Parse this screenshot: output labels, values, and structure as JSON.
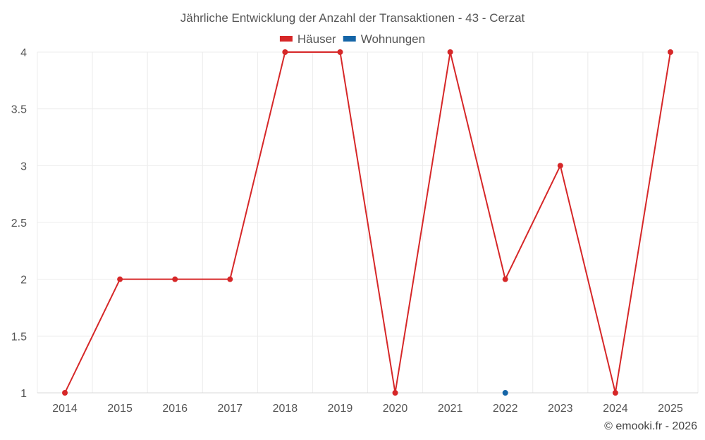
{
  "chart_data": {
    "type": "line",
    "title": "Jährliche Entwicklung der Anzahl der Transaktionen - 43 - Cerzat",
    "x": [
      "2014",
      "2015",
      "2016",
      "2017",
      "2018",
      "2019",
      "2020",
      "2021",
      "2022",
      "2023",
      "2024",
      "2025"
    ],
    "series": [
      {
        "name": "Häuser",
        "color": "#d62728",
        "values": [
          1,
          2,
          2,
          2,
          4,
          4,
          1,
          4,
          2,
          3,
          1,
          4
        ]
      },
      {
        "name": "Wohnungen",
        "color": "#1565a7",
        "values": [
          null,
          null,
          null,
          null,
          null,
          null,
          null,
          null,
          1,
          null,
          null,
          null
        ]
      }
    ],
    "ylim": [
      1,
      4
    ],
    "yticks": [
      "1",
      "1.5",
      "2",
      "2.5",
      "3",
      "3.5",
      "4"
    ],
    "grid": true,
    "legend_position": "top-center",
    "credit": "© emooki.fr - 2026"
  }
}
